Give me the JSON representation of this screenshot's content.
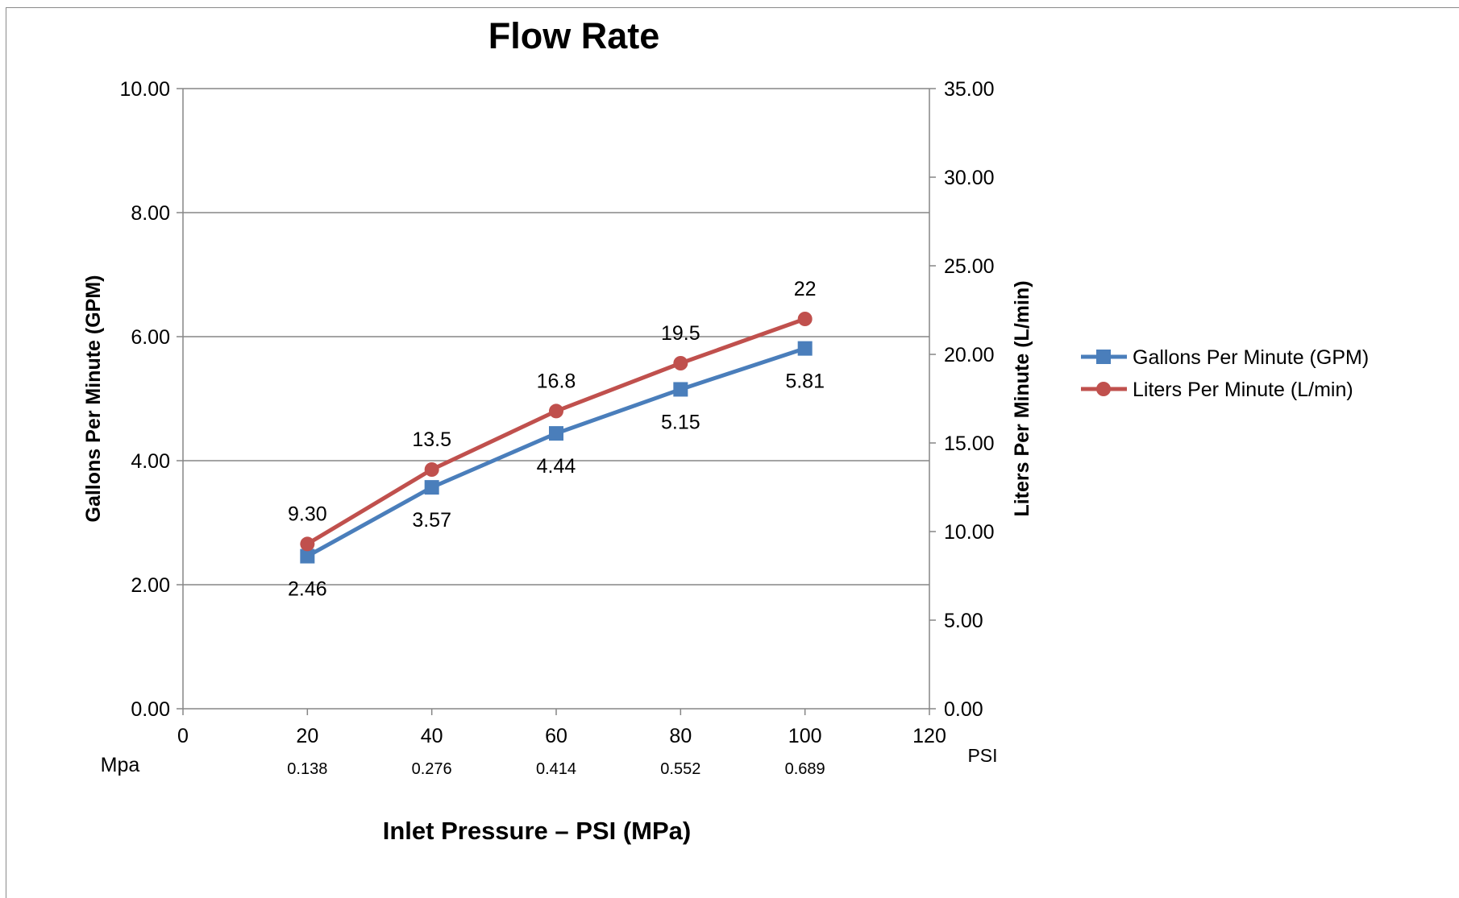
{
  "chart_data": {
    "type": "line",
    "title": "Flow Rate",
    "xlabel": "Inlet Pressure – PSI (MPa)",
    "ylabel": "Gallons Per Minute (GPM)",
    "y2label": "Liters Per Minute (L/min)",
    "x_unit_label": "PSI",
    "secondary_x_label": "Mpa",
    "x": [
      20,
      40,
      60,
      80,
      100
    ],
    "x_ticks": [
      "0",
      "20",
      "40",
      "60",
      "80",
      "100",
      "120"
    ],
    "xlim": [
      0,
      120
    ],
    "mpa_values": [
      "0.138",
      "0.276",
      "0.414",
      "0.552",
      "0.689"
    ],
    "ylim": [
      0,
      10
    ],
    "y_ticks": [
      "0.00",
      "2.00",
      "4.00",
      "6.00",
      "8.00",
      "10.00"
    ],
    "y2lim": [
      0,
      35
    ],
    "y2_ticks": [
      "0.00",
      "5.00",
      "10.00",
      "15.00",
      "20.00",
      "25.00",
      "30.00",
      "35.00"
    ],
    "grid": true,
    "legend_position": "right",
    "series": [
      {
        "name": "Gallons Per Minute (GPM)",
        "axis": "left",
        "values": [
          2.46,
          3.57,
          4.44,
          5.15,
          5.81
        ],
        "labels": [
          "2.46",
          "3.57",
          "4.44",
          "5.15",
          "5.81"
        ],
        "label_position": "below",
        "marker": "square",
        "color": "#4A7EBB"
      },
      {
        "name": "Liters Per Minute (L/min)",
        "axis": "right",
        "values": [
          9.3,
          13.5,
          16.8,
          19.5,
          22
        ],
        "labels": [
          "9.30",
          "13.5",
          "16.8",
          "19.5",
          "22"
        ],
        "label_position": "above",
        "marker": "circle",
        "color": "#C0504D"
      }
    ]
  }
}
